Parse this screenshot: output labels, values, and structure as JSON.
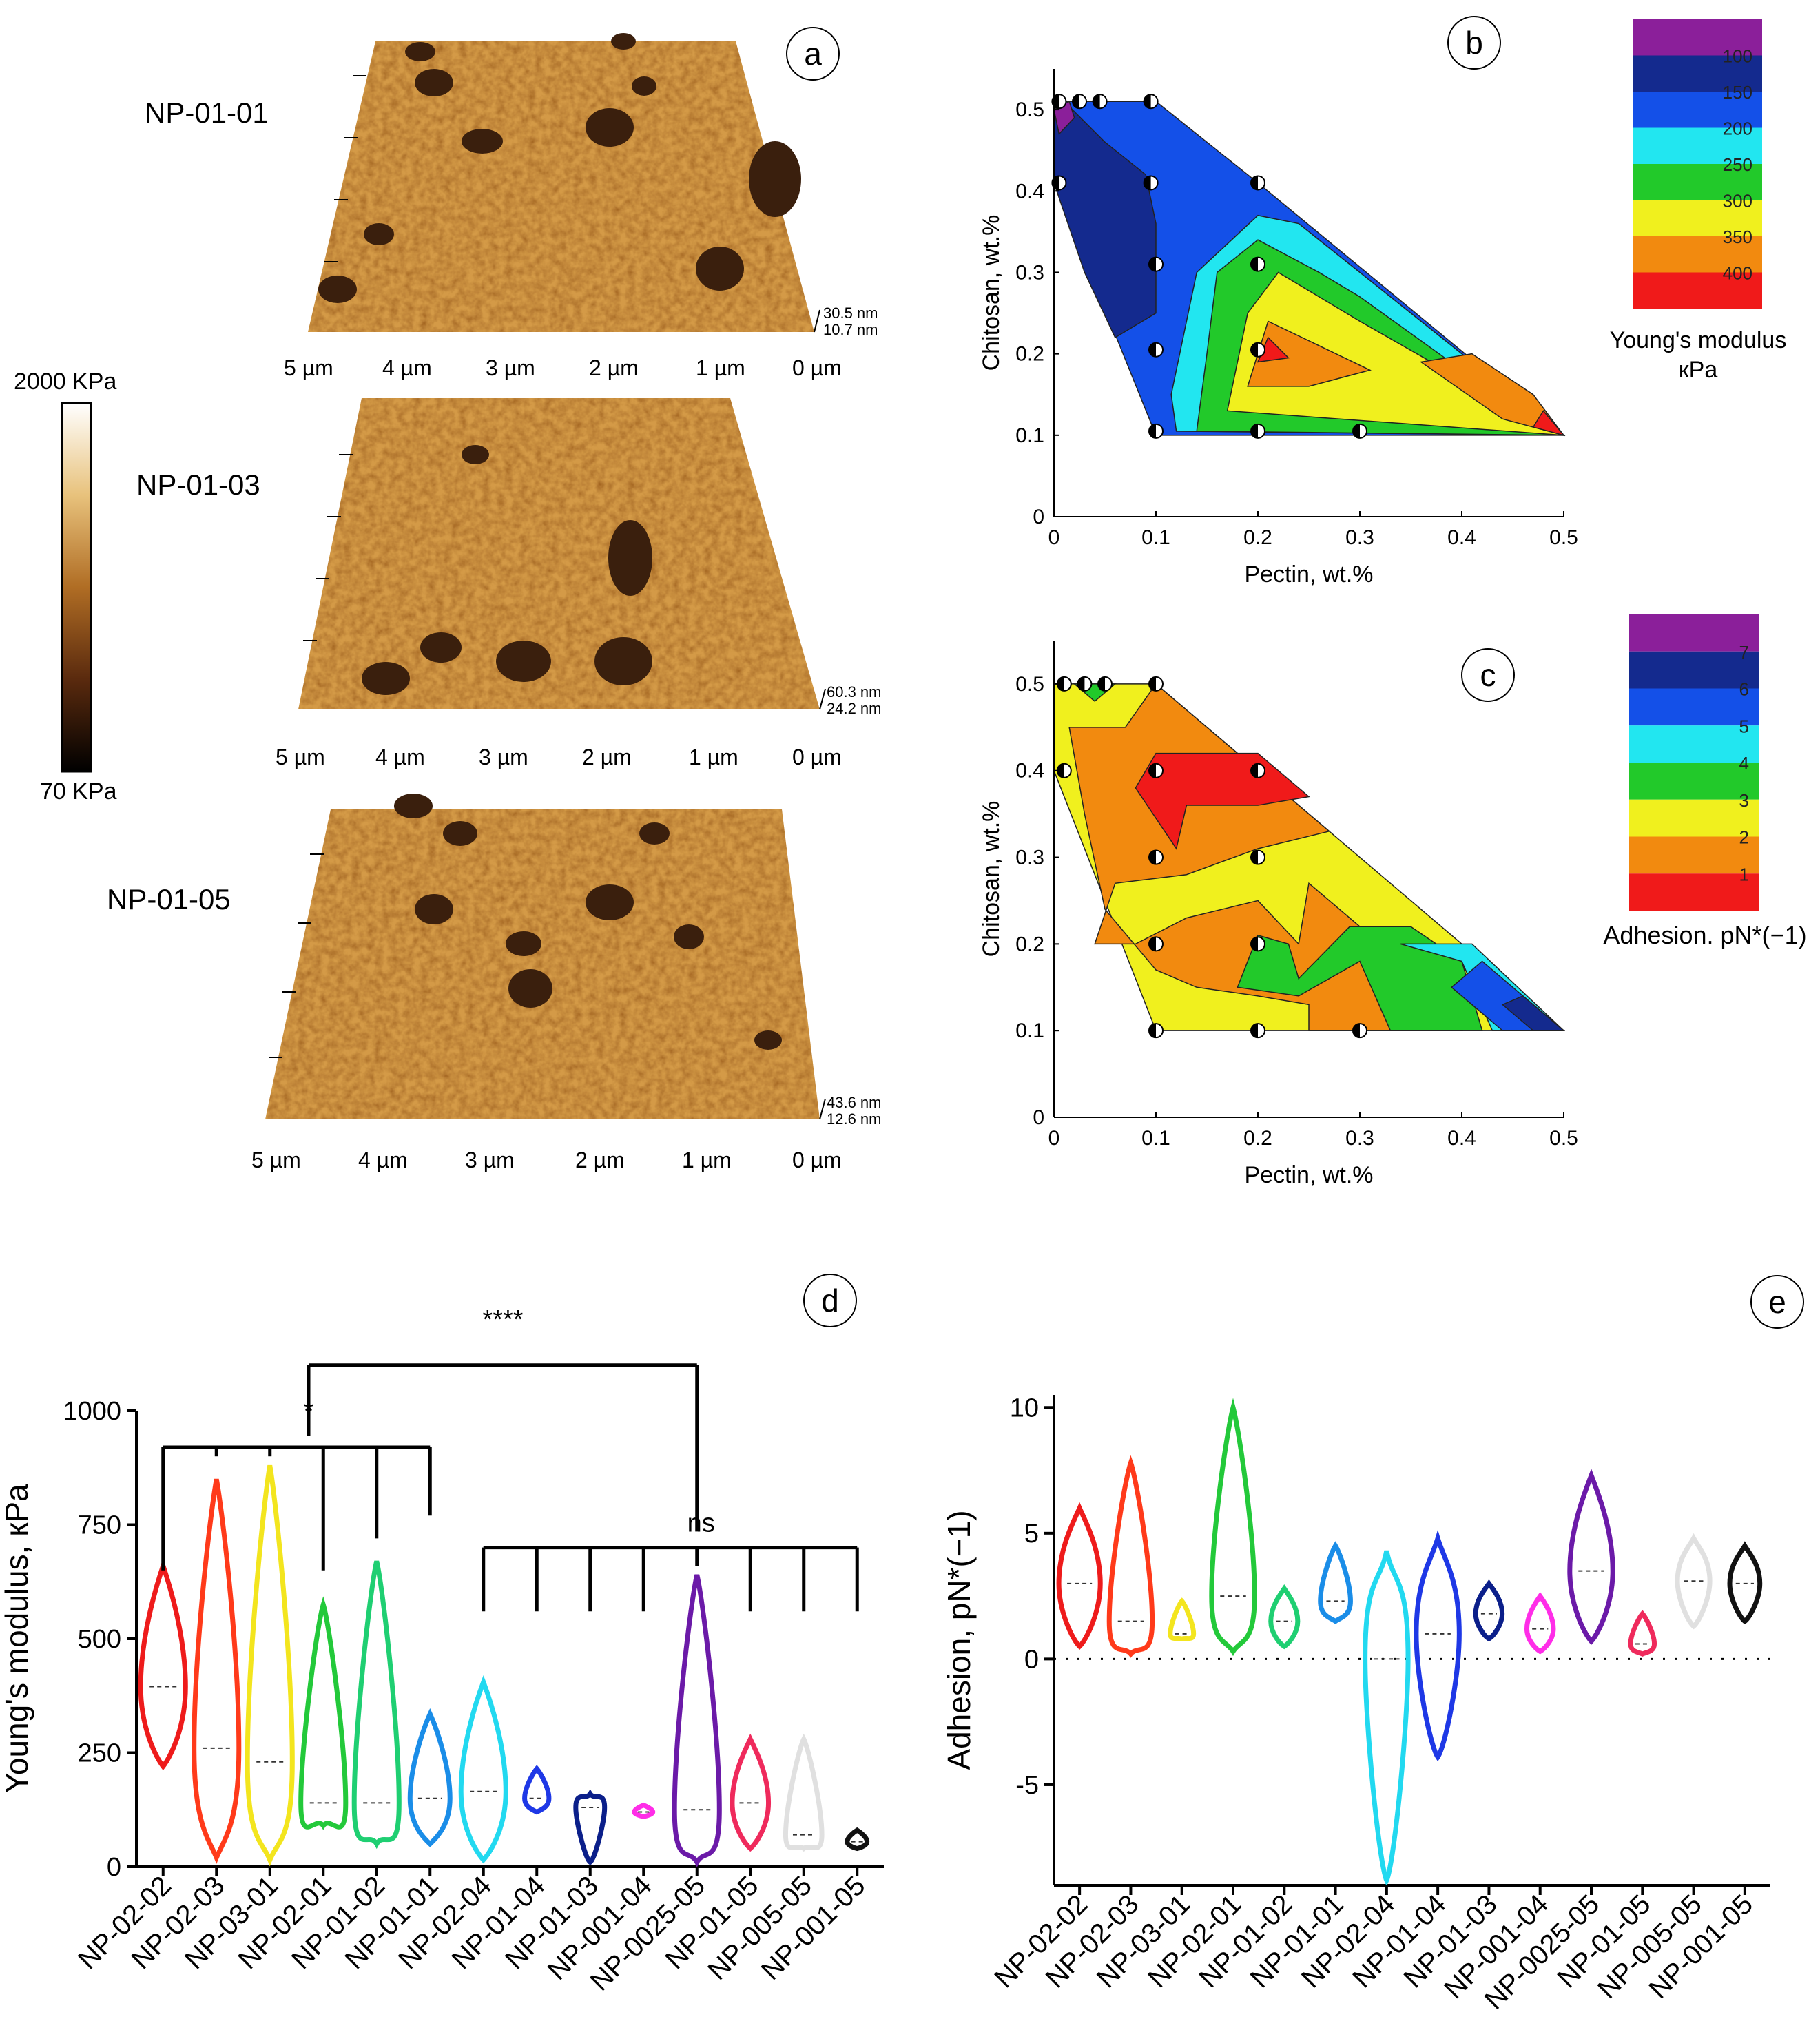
{
  "colors": {
    "afm_light": "#e3b86c",
    "afm_mid": "#c88a35",
    "afm_dark": "#6b3a16",
    "afm_peak": "#3a1f0d",
    "violin": [
      "#ee1b1b",
      "#ff3a1a",
      "#f3e51e",
      "#23c93a",
      "#1fcf72",
      "#1a8de8",
      "#22d9f0",
      "#1e38e6",
      "#0b1f8a",
      "#ff2de8",
      "#6b1aa8",
      "#ef2a5c",
      "#e0e0e0",
      "#111111"
    ],
    "contour_b": [
      "#8b1f9a",
      "#142a8e",
      "#1450e8",
      "#22e6f0",
      "#22c92a",
      "#f0f01e",
      "#f28a0f",
      "#f01a1a"
    ],
    "contour_c": [
      "#8b1f9a",
      "#142a8e",
      "#1450e8",
      "#22e6f0",
      "#22c92a",
      "#f0f01e",
      "#f28a0f",
      "#f01a1a"
    ]
  },
  "panel_labels": {
    "a": "a",
    "b": "b",
    "c": "c",
    "d": "d",
    "e": "e"
  },
  "panel_a": {
    "colorbar_max": "2000 KPa",
    "colorbar_min": "70 KPa",
    "images": [
      {
        "name": "NP-01-01",
        "z_top": "30.5 nm",
        "z_bottom": "10.7 nm"
      },
      {
        "name": "NP-01-03",
        "z_top": "60.3 nm",
        "z_bottom": "24.2 nm"
      },
      {
        "name": "NP-01-05",
        "z_top": "43.6 nm",
        "z_bottom": "12.6 nm"
      }
    ],
    "x_ticks": [
      "5 µm",
      "4 µm",
      "3 µm",
      "2 µm",
      "1 µm",
      "0 µm"
    ]
  },
  "chart_data": [
    {
      "id": "b",
      "type": "contour",
      "xlabel": "Pectin, wt.%",
      "ylabel": "Chitosan, wt.%",
      "xlim": [
        0,
        0.5
      ],
      "ylim": [
        0,
        0.55
      ],
      "x_ticks": [
        "0",
        "0.1",
        "0.2",
        "0.3",
        "0.4",
        "0.5"
      ],
      "y_ticks": [
        "0",
        "0.1",
        "0.2",
        "0.3",
        "0.4",
        "0.5"
      ],
      "legend_title": "Young's modulus. кPa",
      "legend_levels": [
        "100",
        "150",
        "200",
        "250",
        "300",
        "350",
        "400"
      ],
      "sample_points": [
        [
          0.005,
          0.51
        ],
        [
          0.025,
          0.51
        ],
        [
          0.045,
          0.51
        ],
        [
          0.095,
          0.51
        ],
        [
          0.005,
          0.41
        ],
        [
          0.095,
          0.41
        ],
        [
          0.2,
          0.41
        ],
        [
          0.1,
          0.31
        ],
        [
          0.2,
          0.31
        ],
        [
          0.1,
          0.205
        ],
        [
          0.2,
          0.205
        ],
        [
          0.1,
          0.105
        ],
        [
          0.2,
          0.105
        ],
        [
          0.3,
          0.105
        ]
      ]
    },
    {
      "id": "c",
      "type": "contour",
      "xlabel": "Pectin, wt.%",
      "ylabel": "Chitosan, wt.%",
      "xlim": [
        0,
        0.5
      ],
      "ylim": [
        0,
        0.55
      ],
      "x_ticks": [
        "0",
        "0.1",
        "0.2",
        "0.3",
        "0.4",
        "0.5"
      ],
      "y_ticks": [
        "0",
        "0.1",
        "0.2",
        "0.3",
        "0.4",
        "0.5"
      ],
      "legend_title": "Adhesion. pN*(−1)",
      "legend_levels": [
        "7",
        "6",
        "5",
        "4",
        "3",
        "2",
        "1"
      ],
      "sample_points": [
        [
          0.01,
          0.5
        ],
        [
          0.03,
          0.5
        ],
        [
          0.05,
          0.5
        ],
        [
          0.1,
          0.5
        ],
        [
          0.01,
          0.4
        ],
        [
          0.1,
          0.4
        ],
        [
          0.2,
          0.4
        ],
        [
          0.1,
          0.3
        ],
        [
          0.2,
          0.3
        ],
        [
          0.1,
          0.2
        ],
        [
          0.2,
          0.2
        ],
        [
          0.1,
          0.1
        ],
        [
          0.2,
          0.1
        ],
        [
          0.3,
          0.1
        ]
      ]
    },
    {
      "id": "d",
      "type": "violin",
      "ylabel": "Young's modulus, кPa",
      "ylim": [
        0,
        1000
      ],
      "y_ticks": [
        "0",
        "250",
        "500",
        "750",
        "1000"
      ],
      "categories": [
        "NP-02-02",
        "NP-02-03",
        "NP-03-01",
        "NP-02-01",
        "NP-01-02",
        "NP-01-01",
        "NP-02-04",
        "NP-01-04",
        "NP-01-03",
        "NP-001-04",
        "NP-0025-05",
        "NP-01-05",
        "NP-005-05",
        "NP-001-05"
      ],
      "series": [
        {
          "name": "NP-02-02",
          "min": 220,
          "max": 660,
          "median": 395
        },
        {
          "name": "NP-02-03",
          "min": 20,
          "max": 850,
          "median": 260
        },
        {
          "name": "NP-03-01",
          "min": 15,
          "max": 880,
          "median": 230
        },
        {
          "name": "NP-02-01",
          "min": 90,
          "max": 575,
          "median": 140
        },
        {
          "name": "NP-01-02",
          "min": 50,
          "max": 670,
          "median": 140
        },
        {
          "name": "NP-01-01",
          "min": 50,
          "max": 335,
          "median": 150
        },
        {
          "name": "NP-02-04",
          "min": 15,
          "max": 405,
          "median": 165
        },
        {
          "name": "NP-01-04",
          "min": 120,
          "max": 215,
          "median": 150
        },
        {
          "name": "NP-01-03",
          "min": 10,
          "max": 160,
          "median": 130
        },
        {
          "name": "NP-001-04",
          "min": 110,
          "max": 135,
          "median": 120
        },
        {
          "name": "NP-0025-05",
          "min": 10,
          "max": 640,
          "median": 125
        },
        {
          "name": "NP-01-05",
          "min": 40,
          "max": 280,
          "median": 140
        },
        {
          "name": "NP-005-05",
          "min": 40,
          "max": 280,
          "median": 70
        },
        {
          "name": "NP-001-05",
          "min": 40,
          "max": 80,
          "median": 55
        }
      ],
      "annotations": {
        "big": "****",
        "small": "*",
        "ns": "ns"
      }
    },
    {
      "id": "e",
      "type": "violin",
      "ylabel": "Adhesion, pN*(−1)",
      "ylim": [
        -9,
        10.5
      ],
      "y_ticks": [
        "-5",
        "0",
        "5",
        "10"
      ],
      "categories": [
        "NP-02-02",
        "NP-02-03",
        "NP-03-01",
        "NP-02-01",
        "NP-01-02",
        "NP-01-01",
        "NP-02-04",
        "NP-01-04",
        "NP-01-03",
        "NP-001-04",
        "NP-0025-05",
        "NP-01-05",
        "NP-005-05",
        "NP-001-05"
      ],
      "series": [
        {
          "name": "NP-02-02",
          "min": 0.5,
          "max": 6.0,
          "median": 3.0
        },
        {
          "name": "NP-02-03",
          "min": 0.2,
          "max": 7.8,
          "median": 1.5
        },
        {
          "name": "NP-03-01",
          "min": 0.8,
          "max": 2.3,
          "median": 1.0
        },
        {
          "name": "NP-02-01",
          "min": 0.3,
          "max": 10.0,
          "median": 2.5
        },
        {
          "name": "NP-01-02",
          "min": 0.5,
          "max": 2.8,
          "median": 1.5
        },
        {
          "name": "NP-01-01",
          "min": 1.5,
          "max": 4.5,
          "median": 2.3
        },
        {
          "name": "NP-02-04",
          "min": -8.8,
          "max": 4.3,
          "median": 0.0
        },
        {
          "name": "NP-01-04",
          "min": -3.9,
          "max": 4.8,
          "median": 1.0
        },
        {
          "name": "NP-01-03",
          "min": 0.8,
          "max": 3.0,
          "median": 1.8
        },
        {
          "name": "NP-001-04",
          "min": 0.3,
          "max": 2.5,
          "median": 1.2
        },
        {
          "name": "NP-0025-05",
          "min": 0.7,
          "max": 7.3,
          "median": 3.5
        },
        {
          "name": "NP-01-05",
          "min": 0.2,
          "max": 1.8,
          "median": 0.6
        },
        {
          "name": "NP-005-05",
          "min": 1.3,
          "max": 4.8,
          "median": 3.1
        },
        {
          "name": "NP-001-05",
          "min": 1.5,
          "max": 4.5,
          "median": 3.0
        }
      ]
    }
  ]
}
